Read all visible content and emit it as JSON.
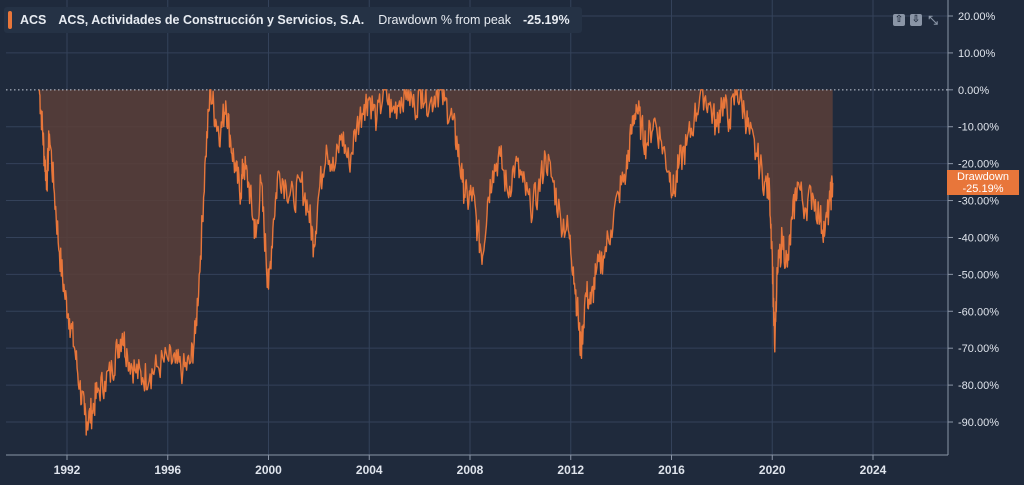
{
  "legend": {
    "ticker": "ACS",
    "company": "ACS, Actividades de Construcción y Servicios, S.A.",
    "metric": "Drawdown % from peak",
    "value": "-25.19%"
  },
  "controls": [
    {
      "name": "move-up-icon",
      "glyph": "⇧"
    },
    {
      "name": "move-down-icon",
      "glyph": "⇩"
    },
    {
      "name": "compress-icon",
      "glyph": "⤡"
    }
  ],
  "badge": {
    "label": "Drawdown",
    "value": "-25.19%"
  },
  "colors": {
    "background": "#1f2a3c",
    "line": "#e8763a",
    "fill": "#5a3e38",
    "grid": "#34425a",
    "text": "#dfe4ec"
  },
  "chart_data": {
    "type": "area",
    "series": [
      {
        "name": "Drawdown",
        "points": [
          [
            1990.9,
            0
          ],
          [
            1991.0,
            -8
          ],
          [
            1991.1,
            -18
          ],
          [
            1991.2,
            -25
          ],
          [
            1991.3,
            -12
          ],
          [
            1991.5,
            -28
          ],
          [
            1991.7,
            -44
          ],
          [
            1991.9,
            -55
          ],
          [
            1992.1,
            -62
          ],
          [
            1992.3,
            -70
          ],
          [
            1992.5,
            -80
          ],
          [
            1992.7,
            -88
          ],
          [
            1992.8,
            -90
          ],
          [
            1993.0,
            -87
          ],
          [
            1993.2,
            -82
          ],
          [
            1993.5,
            -79
          ],
          [
            1993.8,
            -76
          ],
          [
            1994.0,
            -70
          ],
          [
            1994.2,
            -66
          ],
          [
            1994.4,
            -72
          ],
          [
            1994.7,
            -76
          ],
          [
            1995.0,
            -78
          ],
          [
            1995.3,
            -77
          ],
          [
            1995.6,
            -75
          ],
          [
            1996.0,
            -73
          ],
          [
            1996.3,
            -74
          ],
          [
            1996.6,
            -76
          ],
          [
            1996.9,
            -74
          ],
          [
            1997.1,
            -66
          ],
          [
            1997.3,
            -45
          ],
          [
            1997.5,
            -18
          ],
          [
            1997.7,
            0
          ],
          [
            1997.9,
            -8
          ],
          [
            1998.1,
            -12
          ],
          [
            1998.3,
            -3
          ],
          [
            1998.5,
            -14
          ],
          [
            1998.7,
            -22
          ],
          [
            1998.9,
            -28
          ],
          [
            1999.0,
            -20
          ],
          [
            1999.2,
            -25
          ],
          [
            1999.4,
            -35
          ],
          [
            1999.5,
            -40
          ],
          [
            1999.7,
            -25
          ],
          [
            1999.9,
            -45
          ],
          [
            2000.0,
            -54
          ],
          [
            2000.2,
            -35
          ],
          [
            2000.4,
            -22
          ],
          [
            2000.7,
            -26
          ],
          [
            2001.0,
            -30
          ],
          [
            2001.3,
            -25
          ],
          [
            2001.6,
            -33
          ],
          [
            2001.8,
            -42
          ],
          [
            2002.0,
            -28
          ],
          [
            2002.3,
            -15
          ],
          [
            2002.6,
            -22
          ],
          [
            2002.9,
            -12
          ],
          [
            2003.2,
            -20
          ],
          [
            2003.5,
            -10
          ],
          [
            2003.8,
            -4
          ],
          [
            2004.0,
            -2
          ],
          [
            2004.3,
            -8
          ],
          [
            2004.6,
            0
          ],
          [
            2004.9,
            -6
          ],
          [
            2005.2,
            -3
          ],
          [
            2005.5,
            0
          ],
          [
            2005.8,
            -5
          ],
          [
            2006.1,
            0
          ],
          [
            2006.4,
            -4
          ],
          [
            2006.7,
            0
          ],
          [
            2007.0,
            -3
          ],
          [
            2007.3,
            -8
          ],
          [
            2007.5,
            -15
          ],
          [
            2007.7,
            -25
          ],
          [
            2007.9,
            -30
          ],
          [
            2008.1,
            -28
          ],
          [
            2008.3,
            -38
          ],
          [
            2008.5,
            -45
          ],
          [
            2008.7,
            -30
          ],
          [
            2008.9,
            -22
          ],
          [
            2009.2,
            -18
          ],
          [
            2009.5,
            -28
          ],
          [
            2009.8,
            -20
          ],
          [
            2010.1,
            -25
          ],
          [
            2010.4,
            -32
          ],
          [
            2010.7,
            -28
          ],
          [
            2011.0,
            -18
          ],
          [
            2011.3,
            -25
          ],
          [
            2011.6,
            -35
          ],
          [
            2011.9,
            -38
          ],
          [
            2012.1,
            -48
          ],
          [
            2012.3,
            -62
          ],
          [
            2012.4,
            -71
          ],
          [
            2012.6,
            -55
          ],
          [
            2012.8,
            -58
          ],
          [
            2013.0,
            -50
          ],
          [
            2013.3,
            -45
          ],
          [
            2013.6,
            -38
          ],
          [
            2013.9,
            -28
          ],
          [
            2014.2,
            -22
          ],
          [
            2014.4,
            -12
          ],
          [
            2014.6,
            -4
          ],
          [
            2014.8,
            -10
          ],
          [
            2015.0,
            -15
          ],
          [
            2015.3,
            -8
          ],
          [
            2015.6,
            -14
          ],
          [
            2015.9,
            -22
          ],
          [
            2016.1,
            -28
          ],
          [
            2016.3,
            -20
          ],
          [
            2016.6,
            -15
          ],
          [
            2016.9,
            -8
          ],
          [
            2017.2,
            0
          ],
          [
            2017.5,
            -4
          ],
          [
            2017.8,
            -10
          ],
          [
            2018.0,
            -3
          ],
          [
            2018.3,
            -8
          ],
          [
            2018.6,
            0
          ],
          [
            2018.9,
            -6
          ],
          [
            2019.1,
            -12
          ],
          [
            2019.4,
            -18
          ],
          [
            2019.7,
            -25
          ],
          [
            2019.9,
            -28
          ],
          [
            2020.0,
            -45
          ],
          [
            2020.1,
            -71
          ],
          [
            2020.2,
            -50
          ],
          [
            2020.4,
            -40
          ],
          [
            2020.6,
            -48
          ],
          [
            2020.8,
            -35
          ],
          [
            2021.0,
            -25
          ],
          [
            2021.3,
            -32
          ],
          [
            2021.6,
            -28
          ],
          [
            2021.9,
            -35
          ],
          [
            2022.1,
            -38
          ],
          [
            2022.3,
            -30
          ],
          [
            2022.4,
            -25.19
          ]
        ]
      }
    ],
    "x_ticks": [
      "1992",
      "1996",
      "2000",
      "2004",
      "2008",
      "2012",
      "2016",
      "2020",
      "2024"
    ],
    "y_ticks": [
      "20.00%",
      "10.00%",
      "0.00%",
      "-10.00%",
      "-20.00%",
      "-30.00%",
      "-40.00%",
      "-50.00%",
      "-60.00%",
      "-70.00%",
      "-80.00%",
      "-90.00%"
    ],
    "xlim": [
      1990.0,
      2025.0
    ],
    "ylim": [
      -100,
      20
    ],
    "grid": true,
    "zero_line": "dotted"
  }
}
